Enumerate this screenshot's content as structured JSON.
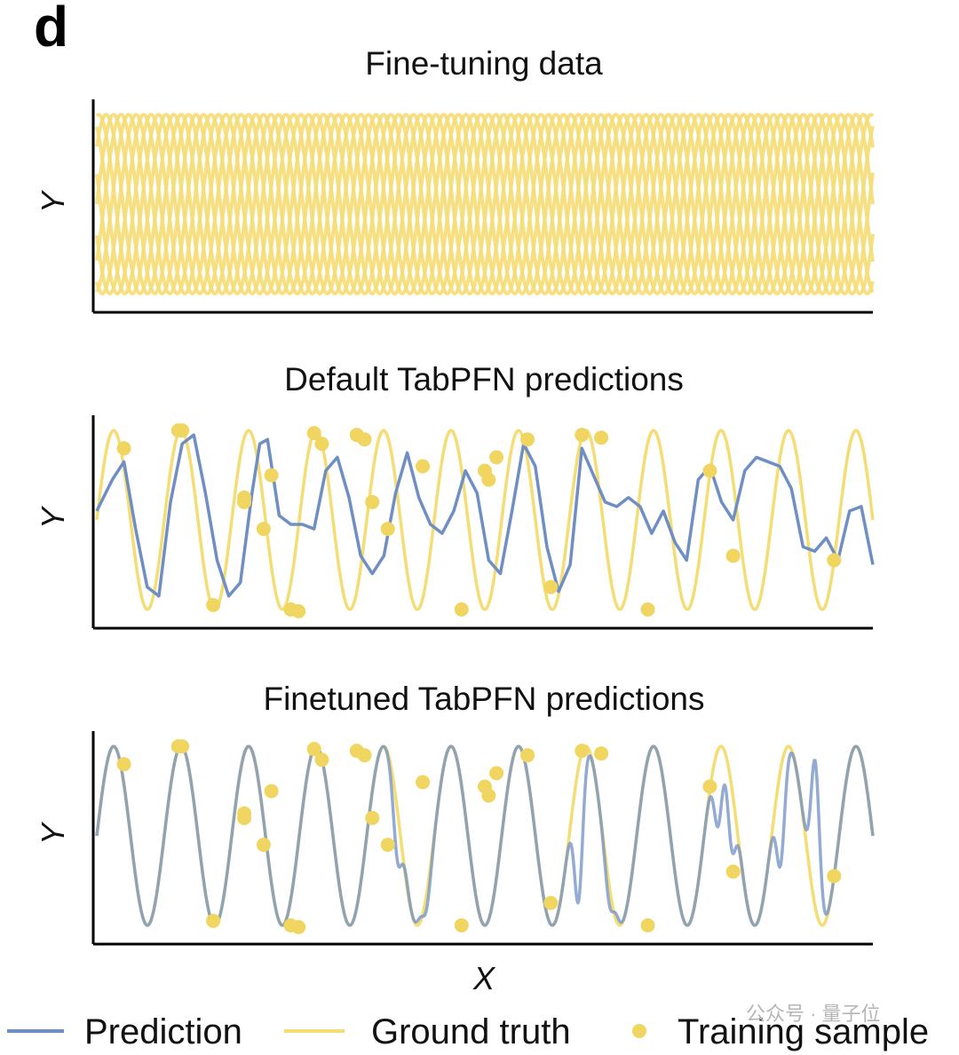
{
  "panel_letter": "d",
  "watermark": "公众号 · 量子位",
  "legend": {
    "prediction": "Prediction",
    "ground_truth": "Ground truth",
    "training_sample": "Training sample"
  },
  "colors": {
    "prediction": "#6f8fc4",
    "ground_truth": "#f5dd75",
    "training_sample": "#f0d560",
    "finetuned_overlap": "#a8a75a",
    "axis": "#000000"
  },
  "chart_data": [
    {
      "type": "line",
      "title": "Fine-tuning data",
      "xlabel": "",
      "ylabel": "Y",
      "xlim": [
        0,
        1
      ],
      "ylim": [
        -1.15,
        1.15
      ],
      "grid": false,
      "series": [
        {
          "role": "ground_truth",
          "function": "sin(2*pi*f*x + phase)",
          "frequency": 11.5,
          "phases": [
            0.0,
            0.7,
            1.4,
            2.1,
            2.8,
            3.5,
            4.2,
            4.9,
            5.6
          ]
        }
      ]
    },
    {
      "type": "line",
      "title": "Default TabPFN predictions",
      "xlabel": "",
      "ylabel": "Y",
      "xlim": [
        0,
        1
      ],
      "ylim": [
        -1.15,
        1.15
      ],
      "grid": false,
      "series": [
        {
          "role": "ground_truth",
          "function": "sin(2*pi*f*x)",
          "frequency": 11.5,
          "phase": 0.0
        },
        {
          "role": "prediction",
          "x": [
            0.0,
            0.02,
            0.035,
            0.05,
            0.065,
            0.08,
            0.095,
            0.11,
            0.125,
            0.14,
            0.155,
            0.17,
            0.185,
            0.2,
            0.21,
            0.22,
            0.235,
            0.25,
            0.265,
            0.28,
            0.295,
            0.31,
            0.325,
            0.34,
            0.355,
            0.37,
            0.385,
            0.4,
            0.415,
            0.43,
            0.445,
            0.46,
            0.475,
            0.49,
            0.505,
            0.52,
            0.535,
            0.55,
            0.565,
            0.58,
            0.595,
            0.61,
            0.625,
            0.64,
            0.655,
            0.67,
            0.685,
            0.7,
            0.715,
            0.73,
            0.745,
            0.76,
            0.775,
            0.79,
            0.805,
            0.82,
            0.835,
            0.85,
            0.865,
            0.88,
            0.895,
            0.91,
            0.925,
            0.94,
            0.955,
            0.97,
            0.985,
            1.0
          ],
          "y": [
            0.1,
            0.45,
            0.65,
            -0.1,
            -0.75,
            -0.85,
            0.2,
            0.85,
            0.95,
            0.3,
            -0.45,
            -0.85,
            -0.7,
            0.3,
            0.85,
            0.9,
            0.05,
            -0.05,
            -0.05,
            -0.1,
            0.55,
            0.7,
            0.25,
            -0.4,
            -0.6,
            -0.4,
            0.3,
            0.75,
            0.25,
            -0.05,
            -0.15,
            0.1,
            0.55,
            0.3,
            -0.45,
            -0.6,
            0.1,
            0.85,
            0.6,
            -0.3,
            -0.8,
            -0.5,
            0.8,
            0.5,
            0.2,
            0.15,
            0.25,
            0.15,
            -0.15,
            0.1,
            -0.25,
            -0.45,
            0.45,
            0.6,
            0.2,
            0.0,
            0.55,
            0.7,
            0.65,
            0.6,
            0.35,
            -0.3,
            -0.35,
            -0.2,
            -0.45,
            0.1,
            0.15,
            -0.5
          ]
        }
      ],
      "training_samples": {
        "x": [
          0.035,
          0.105,
          0.11,
          0.15,
          0.19,
          0.19,
          0.215,
          0.225,
          0.25,
          0.26,
          0.28,
          0.29,
          0.335,
          0.345,
          0.355,
          0.375,
          0.42,
          0.47,
          0.5,
          0.505,
          0.515,
          0.555,
          0.585,
          0.625,
          0.65,
          0.71,
          0.79,
          0.82,
          0.95
        ],
        "y": [
          0.8,
          1.0,
          1.0,
          -0.95,
          0.2,
          0.25,
          -0.1,
          0.5,
          -1.0,
          -1.02,
          0.97,
          0.85,
          0.95,
          0.9,
          0.2,
          -0.1,
          0.6,
          -1.0,
          0.55,
          0.45,
          0.7,
          0.9,
          -0.75,
          0.95,
          0.92,
          -1.0,
          0.55,
          -0.4,
          -0.45
        ]
      }
    },
    {
      "type": "line",
      "title": "Finetuned TabPFN predictions",
      "xlabel": "X",
      "ylabel": "Y",
      "xlim": [
        0,
        1
      ],
      "ylim": [
        -1.15,
        1.15
      ],
      "grid": false,
      "series": [
        {
          "role": "ground_truth",
          "function": "sin(2*pi*f*x)",
          "frequency": 11.5,
          "phase": 0.0
        },
        {
          "role": "prediction",
          "function": "sin(2*pi*f*x) with deviations",
          "frequency": 11.5,
          "deviations": [
            {
              "x": 0.39,
              "y": -0.35
            },
            {
              "x": 0.42,
              "y": -0.9
            },
            {
              "x": 0.62,
              "y": -0.75
            },
            {
              "x": 0.665,
              "y": -0.85
            },
            {
              "x": 0.8,
              "y": 0.1
            },
            {
              "x": 0.82,
              "y": -0.2
            },
            {
              "x": 0.88,
              "y": -0.35
            },
            {
              "x": 0.925,
              "y": 0.85
            }
          ]
        }
      ],
      "training_samples": {
        "x": [
          0.035,
          0.105,
          0.11,
          0.15,
          0.19,
          0.19,
          0.215,
          0.225,
          0.25,
          0.26,
          0.28,
          0.29,
          0.335,
          0.345,
          0.355,
          0.375,
          0.42,
          0.47,
          0.5,
          0.505,
          0.515,
          0.555,
          0.585,
          0.625,
          0.65,
          0.71,
          0.79,
          0.82,
          0.95
        ],
        "y": [
          0.8,
          1.0,
          1.0,
          -0.95,
          0.2,
          0.25,
          -0.1,
          0.5,
          -1.0,
          -1.02,
          0.97,
          0.85,
          0.95,
          0.9,
          0.2,
          -0.1,
          0.6,
          -1.0,
          0.55,
          0.45,
          0.7,
          0.9,
          -0.75,
          0.95,
          0.92,
          -1.0,
          0.55,
          -0.4,
          -0.45
        ]
      }
    }
  ]
}
